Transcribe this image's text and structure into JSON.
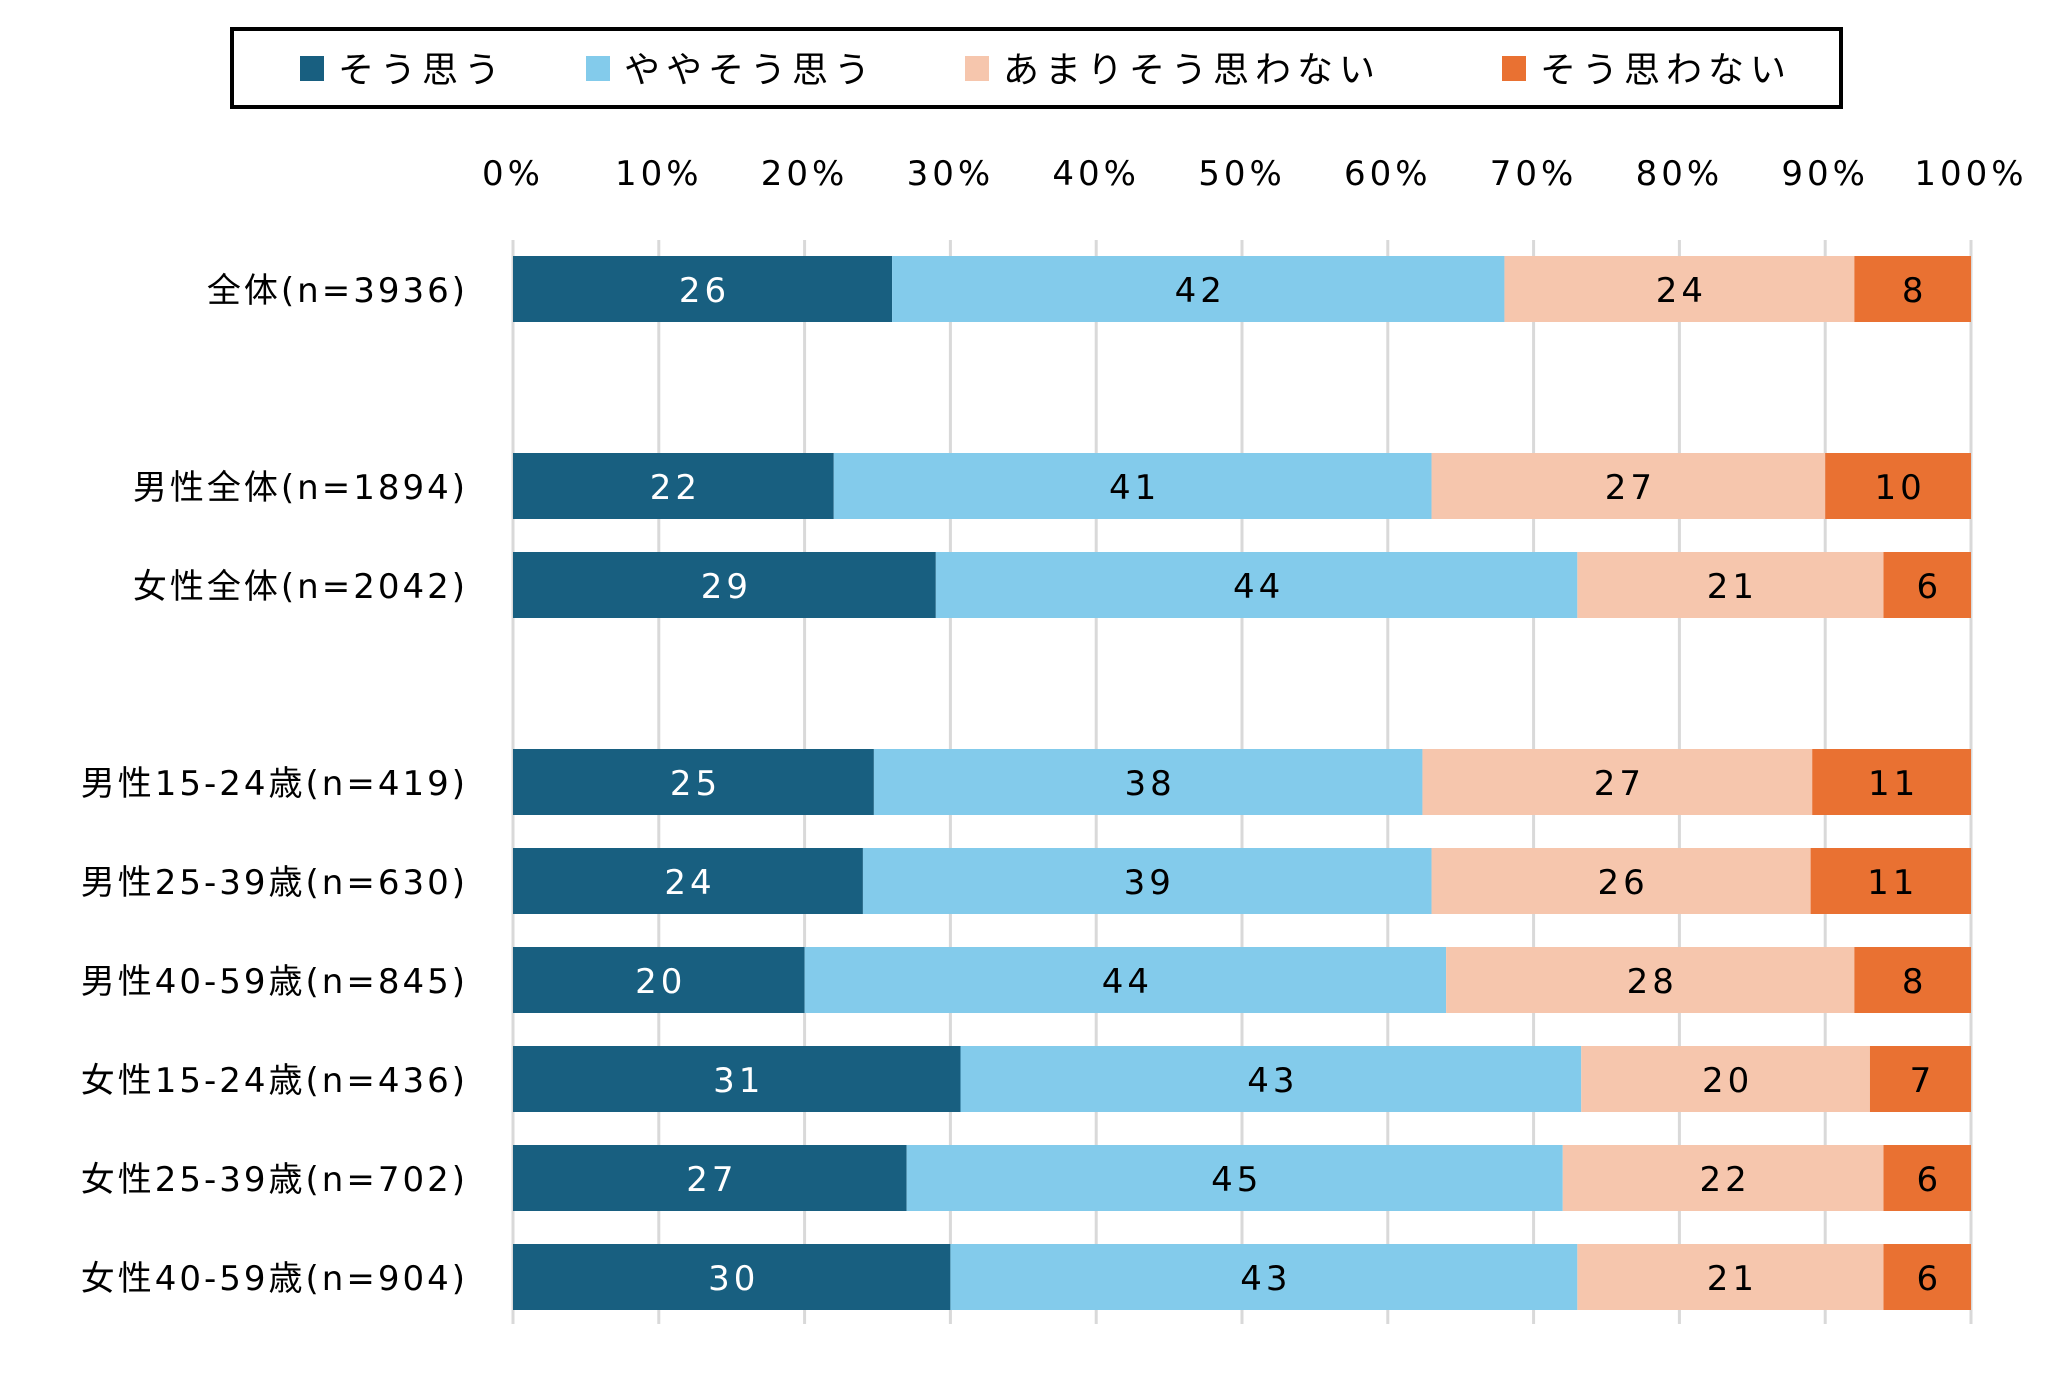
{
  "chart_data": {
    "type": "bar",
    "orientation": "horizontal",
    "stacked": true,
    "percent_stacked": true,
    "legend_position": "top",
    "grid": true,
    "xlim": [
      0,
      100
    ],
    "x_ticks": [
      "0%",
      "10%",
      "20%",
      "30%",
      "40%",
      "50%",
      "60%",
      "70%",
      "80%",
      "90%",
      "100%"
    ],
    "categories": [
      "全体(n=3936)",
      "男性全体(n=1894)",
      "女性全体(n=2042)",
      "男性15-24歳(n=419)",
      "男性25-39歳(n=630)",
      "男性40-59歳(n=845)",
      "女性15-24歳(n=436)",
      "女性25-39歳(n=702)",
      "女性40-59歳(n=904)"
    ],
    "series": [
      {
        "name": "そう思う",
        "color": "#185F80",
        "label_color": "#FFFFFF",
        "values": [
          26,
          22,
          29,
          25,
          24,
          20,
          31,
          27,
          30
        ]
      },
      {
        "name": "ややそう思う",
        "color": "#83CBEB",
        "label_color": "#000000",
        "values": [
          42,
          41,
          44,
          38,
          39,
          44,
          43,
          45,
          43
        ]
      },
      {
        "name": "あまりそう思わない",
        "color": "#F6C6AD",
        "label_color": "#000000",
        "values": [
          24,
          27,
          21,
          27,
          26,
          28,
          20,
          22,
          21
        ]
      },
      {
        "name": "そう思わない",
        "color": "#E97132",
        "label_color": "#000000",
        "values": [
          8,
          10,
          6,
          11,
          11,
          8,
          7,
          6,
          6
        ]
      }
    ],
    "title": "",
    "xlabel": "",
    "ylabel": ""
  }
}
